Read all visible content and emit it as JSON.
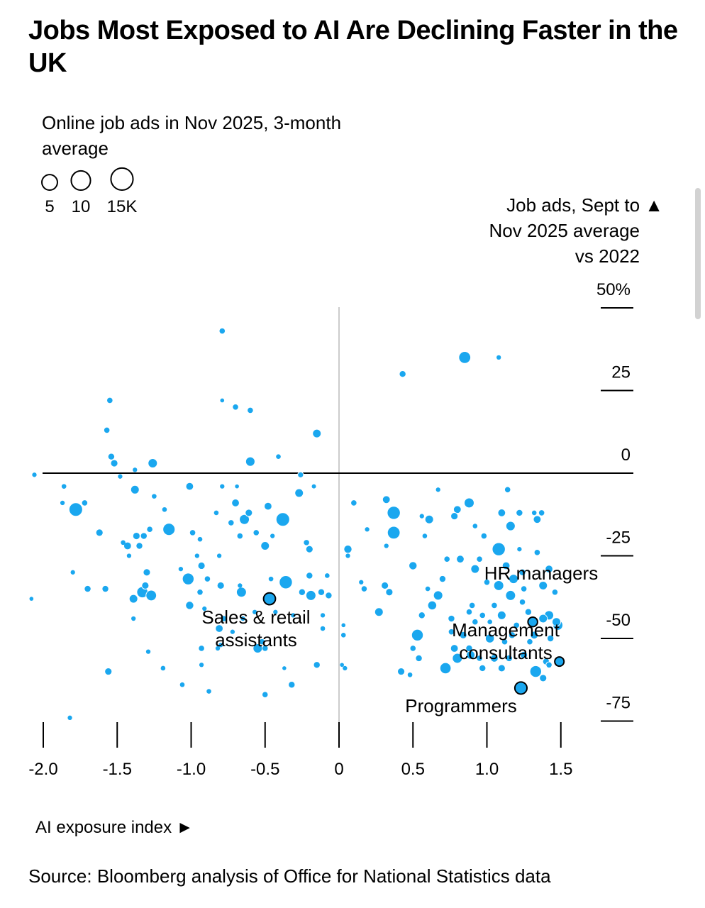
{
  "chart_data": {
    "type": "scatter",
    "title": "Jobs Most Exposed to AI Are Declining Faster in the UK",
    "size_legend": {
      "label": "Online job ads in Nov 2025, 3-month average",
      "values": [
        5,
        10,
        15
      ],
      "tick_labels": [
        "5",
        "10",
        "15K"
      ]
    },
    "ylabel": "Job ads, Sept to ▲ Nov 2025 average vs 2022",
    "ylabel_lines": [
      "Job ads, Sept to ▲",
      "Nov 2025 average",
      "vs 2022"
    ],
    "xlabel": "AI exposure index ►",
    "source": "Source: Bloomberg analysis of Office for National Statistics data",
    "xlim": [
      -2.1,
      1.55
    ],
    "ylim": [
      -79,
      50
    ],
    "x_ticks": [
      -2.0,
      -1.5,
      -1.0,
      -0.5,
      0,
      0.5,
      1.0,
      1.5
    ],
    "x_tick_labels": [
      "-2.0",
      "-1.5",
      "-1.0",
      "-0.5",
      "0",
      "0.5",
      "1.0",
      "1.5"
    ],
    "y_ticks": [
      50,
      25,
      0,
      -25,
      -50,
      -75
    ],
    "y_tick_labels": [
      "50%",
      "25",
      "0",
      "-25",
      "-50",
      "-75"
    ],
    "colors": {
      "bubble": "#1aa7ef",
      "highlight_outline": "#000000",
      "zero_line": "#000000",
      "vertical_zero": "#cccccc"
    },
    "highlighted": [
      {
        "name": "Sales & retail assistants",
        "label_lines": [
          "Sales & retail",
          "assistants"
        ],
        "x": -0.47,
        "y": -38,
        "size": 9.5
      },
      {
        "name": "HR managers",
        "label_lines": [
          "HR managers"
        ],
        "x": 1.31,
        "y": -45,
        "size": 5.5
      },
      {
        "name": "Management consultants",
        "label_lines": [
          "Management",
          "consultants"
        ],
        "x": 1.49,
        "y": -57,
        "size": 5
      },
      {
        "name": "Programmers",
        "label_lines": [
          "Programmers"
        ],
        "x": 1.23,
        "y": -65,
        "size": 10
      }
    ],
    "points": [
      {
        "x": -0.79,
        "y": 43,
        "size": 1
      },
      {
        "x": 0.85,
        "y": 35,
        "size": 9.5
      },
      {
        "x": 1.08,
        "y": 35,
        "size": 0.5
      },
      {
        "x": 0.43,
        "y": 30,
        "size": 2
      },
      {
        "x": -0.79,
        "y": 22,
        "size": 0.3
      },
      {
        "x": -1.55,
        "y": 22,
        "size": 1
      },
      {
        "x": -0.7,
        "y": 20,
        "size": 1.5
      },
      {
        "x": -0.6,
        "y": 19,
        "size": 1.5
      },
      {
        "x": -1.57,
        "y": 13,
        "size": 1.5
      },
      {
        "x": -0.15,
        "y": 12,
        "size": 4
      },
      {
        "x": -1.54,
        "y": 5,
        "size": 2
      },
      {
        "x": -0.41,
        "y": 5,
        "size": 0.6
      },
      {
        "x": -1.52,
        "y": 3,
        "size": 2.5
      },
      {
        "x": -1.26,
        "y": 3,
        "size": 5
      },
      {
        "x": -0.6,
        "y": 3.5,
        "size": 5
      },
      {
        "x": -1.48,
        "y": -1,
        "size": 0.5
      },
      {
        "x": -1.38,
        "y": 1,
        "size": 0.5
      },
      {
        "x": -0.26,
        "y": -0.5,
        "size": 1.3
      },
      {
        "x": -2.06,
        "y": -0.5,
        "size": 0.5
      },
      {
        "x": -0.17,
        "y": -4,
        "size": 0.4
      },
      {
        "x": -1.86,
        "y": -4,
        "size": 0.6
      },
      {
        "x": -1.38,
        "y": -5,
        "size": 4
      },
      {
        "x": -1.01,
        "y": -4,
        "size": 3
      },
      {
        "x": -0.79,
        "y": -4,
        "size": 0.5
      },
      {
        "x": -0.69,
        "y": -4,
        "size": 0.3
      },
      {
        "x": 1.14,
        "y": -5,
        "size": 1.5
      },
      {
        "x": -1.25,
        "y": -7,
        "size": 0.6
      },
      {
        "x": -0.27,
        "y": -6,
        "size": 4
      },
      {
        "x": 0.67,
        "y": -5,
        "size": 0.5
      },
      {
        "x": -1.78,
        "y": -11,
        "size": 13
      },
      {
        "x": -1.72,
        "y": -9,
        "size": 1.5
      },
      {
        "x": -0.7,
        "y": -9,
        "size": 3
      },
      {
        "x": -0.48,
        "y": -10,
        "size": 3
      },
      {
        "x": 0.1,
        "y": -9,
        "size": 1.5
      },
      {
        "x": 0.32,
        "y": -8,
        "size": 3
      },
      {
        "x": 0.37,
        "y": -12,
        "size": 12
      },
      {
        "x": 0.88,
        "y": -9,
        "size": 6
      },
      {
        "x": -1.87,
        "y": -9,
        "size": 0.5
      },
      {
        "x": -1.18,
        "y": -11,
        "size": 0.6
      },
      {
        "x": -0.83,
        "y": -12,
        "size": 0.6
      },
      {
        "x": -0.61,
        "y": -12,
        "size": 2.5
      },
      {
        "x": -0.38,
        "y": -14,
        "size": 13
      },
      {
        "x": -0.64,
        "y": -14,
        "size": 6
      },
      {
        "x": 0.56,
        "y": -13,
        "size": 0.5
      },
      {
        "x": 0.8,
        "y": -11,
        "size": 3
      },
      {
        "x": 1.1,
        "y": -12,
        "size": 3
      },
      {
        "x": 1.22,
        "y": -12,
        "size": 2
      },
      {
        "x": 1.32,
        "y": -12,
        "size": 0.6
      },
      {
        "x": 1.37,
        "y": -12,
        "size": 1
      },
      {
        "x": -0.73,
        "y": -15,
        "size": 1.5
      },
      {
        "x": 0.61,
        "y": -14,
        "size": 4
      },
      {
        "x": 0.78,
        "y": -13,
        "size": 2.5
      },
      {
        "x": 0.92,
        "y": -16,
        "size": 0.6
      },
      {
        "x": 1.16,
        "y": -16,
        "size": 5
      },
      {
        "x": 1.34,
        "y": -14,
        "size": 3
      },
      {
        "x": -1.15,
        "y": -17,
        "size": 10
      },
      {
        "x": -1.62,
        "y": -18,
        "size": 2.5
      },
      {
        "x": -1.28,
        "y": -17,
        "size": 1.5
      },
      {
        "x": -1.37,
        "y": -19,
        "size": 2.5
      },
      {
        "x": -1.32,
        "y": -19,
        "size": 2
      },
      {
        "x": -0.99,
        "y": -18,
        "size": 1
      },
      {
        "x": -0.56,
        "y": -18,
        "size": 1.5
      },
      {
        "x": -0.67,
        "y": -19,
        "size": 1.5
      },
      {
        "x": 0.37,
        "y": -18,
        "size": 11
      },
      {
        "x": 0.19,
        "y": -17,
        "size": 0.5
      },
      {
        "x": 0.58,
        "y": -19,
        "size": 0.6
      },
      {
        "x": 0.98,
        "y": -19,
        "size": 1.5
      },
      {
        "x": -0.45,
        "y": -19,
        "size": 0.5
      },
      {
        "x": -0.94,
        "y": -20,
        "size": 0.6
      },
      {
        "x": -1.46,
        "y": -21,
        "size": 0.6
      },
      {
        "x": -1.43,
        "y": -22,
        "size": 3
      },
      {
        "x": -1.35,
        "y": -22,
        "size": 2
      },
      {
        "x": -0.5,
        "y": -22,
        "size": 4
      },
      {
        "x": -0.22,
        "y": -21,
        "size": 1.5
      },
      {
        "x": -0.2,
        "y": -23,
        "size": 2.5
      },
      {
        "x": 0.06,
        "y": -23,
        "size": 3.5
      },
      {
        "x": 0.32,
        "y": -22,
        "size": 0.5
      },
      {
        "x": 1.08,
        "y": -23,
        "size": 12
      },
      {
        "x": 1.22,
        "y": -23,
        "size": 0.5
      },
      {
        "x": 1.34,
        "y": -24,
        "size": 1
      },
      {
        "x": -1.42,
        "y": -25,
        "size": 0.5
      },
      {
        "x": -0.96,
        "y": -25,
        "size": 0.5
      },
      {
        "x": -0.81,
        "y": -25,
        "size": 0.5
      },
      {
        "x": 0.06,
        "y": -25,
        "size": 0.5
      },
      {
        "x": 0.73,
        "y": -26,
        "size": 1
      },
      {
        "x": 0.82,
        "y": -26,
        "size": 3
      },
      {
        "x": 0.95,
        "y": -26,
        "size": 1
      },
      {
        "x": -0.93,
        "y": -28,
        "size": 2.5
      },
      {
        "x": -1.07,
        "y": -29,
        "size": 0.5
      },
      {
        "x": 0.5,
        "y": -28,
        "size": 3.5
      },
      {
        "x": 0.92,
        "y": -29,
        "size": 4
      },
      {
        "x": 1.13,
        "y": -28,
        "size": 3
      },
      {
        "x": 1.24,
        "y": -30,
        "size": 2
      },
      {
        "x": 1.42,
        "y": -29,
        "size": 3
      },
      {
        "x": -1.8,
        "y": -30,
        "size": 0.5
      },
      {
        "x": -1.3,
        "y": -30,
        "size": 2.5
      },
      {
        "x": -0.46,
        "y": -32,
        "size": 0.6
      },
      {
        "x": -0.2,
        "y": -31,
        "size": 2
      },
      {
        "x": -0.08,
        "y": -31,
        "size": 0.6
      },
      {
        "x": -1.02,
        "y": -32,
        "size": 9
      },
      {
        "x": -0.89,
        "y": -32,
        "size": 1.5
      },
      {
        "x": -0.8,
        "y": -34,
        "size": 2.5
      },
      {
        "x": -1.31,
        "y": -34,
        "size": 2.5
      },
      {
        "x": -1.33,
        "y": -36,
        "size": 8
      },
      {
        "x": -1.27,
        "y": -37,
        "size": 7
      },
      {
        "x": -0.36,
        "y": -33,
        "size": 12
      },
      {
        "x": -0.25,
        "y": -36,
        "size": 2
      },
      {
        "x": 0.15,
        "y": -33,
        "size": 0.5
      },
      {
        "x": 0.31,
        "y": -34,
        "size": 2.5
      },
      {
        "x": 0.7,
        "y": -32,
        "size": 2
      },
      {
        "x": 0.6,
        "y": -35,
        "size": 0.6
      },
      {
        "x": 1.0,
        "y": -33,
        "size": 1.5
      },
      {
        "x": 1.08,
        "y": -34,
        "size": 6
      },
      {
        "x": 1.18,
        "y": -32,
        "size": 5
      },
      {
        "x": 1.38,
        "y": -34,
        "size": 4
      },
      {
        "x": 1.46,
        "y": -36,
        "size": 1.5
      },
      {
        "x": -1.7,
        "y": -35,
        "size": 2
      },
      {
        "x": -1.58,
        "y": -35,
        "size": 2
      },
      {
        "x": -0.66,
        "y": -36,
        "size": 6
      },
      {
        "x": -0.67,
        "y": -34,
        "size": 0.5
      },
      {
        "x": 0.17,
        "y": -35,
        "size": 1.5
      },
      {
        "x": 0.34,
        "y": -36,
        "size": 2.5
      },
      {
        "x": 0.67,
        "y": -37,
        "size": 5
      },
      {
        "x": 1.25,
        "y": -35,
        "size": 1
      },
      {
        "x": 1.16,
        "y": -37,
        "size": 6
      },
      {
        "x": -1.39,
        "y": -38,
        "size": 4
      },
      {
        "x": -0.94,
        "y": -36,
        "size": 1.5
      },
      {
        "x": -0.19,
        "y": -37,
        "size": 6
      },
      {
        "x": -0.12,
        "y": -36,
        "size": 2
      },
      {
        "x": -0.07,
        "y": -37,
        "size": 2
      },
      {
        "x": 0.63,
        "y": -40,
        "size": 4.5
      },
      {
        "x": 0.9,
        "y": -40,
        "size": 1
      },
      {
        "x": 1.05,
        "y": -40,
        "size": 1
      },
      {
        "x": 1.24,
        "y": -39,
        "size": 1
      },
      {
        "x": -2.08,
        "y": -38,
        "size": 0.3
      },
      {
        "x": -1.01,
        "y": -40,
        "size": 3.5
      },
      {
        "x": -0.91,
        "y": -41,
        "size": 0.5
      },
      {
        "x": -0.57,
        "y": -42,
        "size": 0.5
      },
      {
        "x": -0.43,
        "y": -42,
        "size": 0.5
      },
      {
        "x": -0.31,
        "y": -43,
        "size": 0.5
      },
      {
        "x": 0.27,
        "y": -42,
        "size": 4
      },
      {
        "x": 0.56,
        "y": -43,
        "size": 2
      },
      {
        "x": 0.76,
        "y": -44,
        "size": 2
      },
      {
        "x": 0.88,
        "y": -42,
        "size": 1
      },
      {
        "x": 0.97,
        "y": -43,
        "size": 1.5
      },
      {
        "x": 1.1,
        "y": -43,
        "size": 4
      },
      {
        "x": 1.28,
        "y": -42,
        "size": 2
      },
      {
        "x": 1.38,
        "y": -44,
        "size": 4
      },
      {
        "x": 1.42,
        "y": -43,
        "size": 5
      },
      {
        "x": 1.47,
        "y": -45,
        "size": 4
      },
      {
        "x": -1.39,
        "y": -44,
        "size": 0.5
      },
      {
        "x": -0.78,
        "y": -44,
        "size": 1.5
      },
      {
        "x": -0.65,
        "y": -44,
        "size": 0.5
      },
      {
        "x": -0.11,
        "y": -43,
        "size": 0.5
      },
      {
        "x": 0.92,
        "y": -45,
        "size": 1.5
      },
      {
        "x": 1.02,
        "y": -45,
        "size": 0.6
      },
      {
        "x": 1.2,
        "y": -46,
        "size": 1.5
      },
      {
        "x": 1.48,
        "y": -46,
        "size": 6
      },
      {
        "x": -0.81,
        "y": -47,
        "size": 3
      },
      {
        "x": -0.72,
        "y": -48,
        "size": 0.5
      },
      {
        "x": -0.11,
        "y": -47,
        "size": 0.6
      },
      {
        "x": 0.03,
        "y": -46,
        "size": 0.3
      },
      {
        "x": 0.53,
        "y": -49,
        "size": 9
      },
      {
        "x": 0.76,
        "y": -48,
        "size": 1
      },
      {
        "x": 0.84,
        "y": -49,
        "size": 2.5
      },
      {
        "x": 1.02,
        "y": -50,
        "size": 4.5
      },
      {
        "x": 1.17,
        "y": -49,
        "size": 2
      },
      {
        "x": 1.32,
        "y": -49,
        "size": 3
      },
      {
        "x": 1.43,
        "y": -50,
        "size": 2
      },
      {
        "x": 0.03,
        "y": -49,
        "size": 0.6
      },
      {
        "x": -0.8,
        "y": -52,
        "size": 0.5
      },
      {
        "x": -0.52,
        "y": -51,
        "size": 1
      },
      {
        "x": -0.5,
        "y": -53,
        "size": 1
      },
      {
        "x": 0.5,
        "y": -53,
        "size": 1.5
      },
      {
        "x": 0.78,
        "y": -53,
        "size": 3
      },
      {
        "x": 0.88,
        "y": -53,
        "size": 2
      },
      {
        "x": 1.12,
        "y": -51,
        "size": 1
      },
      {
        "x": 1.29,
        "y": -51,
        "size": 1
      },
      {
        "x": -0.93,
        "y": -53,
        "size": 1
      },
      {
        "x": -0.82,
        "y": -53,
        "size": 0.5
      },
      {
        "x": -0.55,
        "y": -53,
        "size": 5
      },
      {
        "x": -1.29,
        "y": -54,
        "size": 0.5
      },
      {
        "x": 0.8,
        "y": -56,
        "size": 6
      },
      {
        "x": 0.89,
        "y": -55,
        "size": 4
      },
      {
        "x": 0.95,
        "y": -56,
        "size": 1.5
      },
      {
        "x": 1.05,
        "y": -56,
        "size": 3
      },
      {
        "x": 1.15,
        "y": -56,
        "size": 2
      },
      {
        "x": 1.25,
        "y": -55,
        "size": 2.5
      },
      {
        "x": 1.4,
        "y": -57,
        "size": 2
      },
      {
        "x": 0.54,
        "y": -56,
        "size": 2
      },
      {
        "x": 1.42,
        "y": -58,
        "size": 1.5
      },
      {
        "x": -0.15,
        "y": -58,
        "size": 2
      },
      {
        "x": 0.04,
        "y": -59,
        "size": 0.5
      },
      {
        "x": 0.02,
        "y": -58,
        "size": 0.3
      },
      {
        "x": 0.72,
        "y": -59,
        "size": 8
      },
      {
        "x": 0.97,
        "y": -59,
        "size": 2
      },
      {
        "x": 1.1,
        "y": -59,
        "size": 2.5
      },
      {
        "x": -1.56,
        "y": -60,
        "size": 2.5
      },
      {
        "x": -1.19,
        "y": -59,
        "size": 0.6
      },
      {
        "x": -0.93,
        "y": -58,
        "size": 0.5
      },
      {
        "x": -0.37,
        "y": -59,
        "size": 0.3
      },
      {
        "x": 0.42,
        "y": -60,
        "size": 2.5
      },
      {
        "x": 0.48,
        "y": -61,
        "size": 0.6
      },
      {
        "x": 1.33,
        "y": -60,
        "size": 9
      },
      {
        "x": 1.38,
        "y": -62,
        "size": 2.5
      },
      {
        "x": -1.06,
        "y": -64,
        "size": 0.6
      },
      {
        "x": -0.88,
        "y": -66,
        "size": 0.6
      },
      {
        "x": -0.32,
        "y": -64,
        "size": 2
      },
      {
        "x": -0.5,
        "y": -67,
        "size": 1.5
      },
      {
        "x": -1.82,
        "y": -74,
        "size": 0.5
      }
    ]
  }
}
